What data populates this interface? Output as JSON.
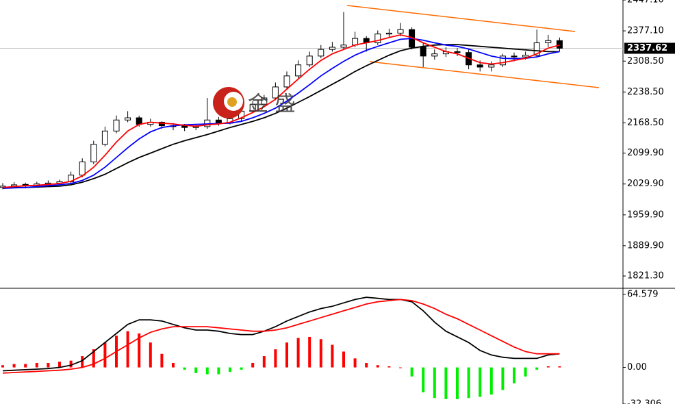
{
  "chart_data": [
    {
      "type": "candlestick",
      "open": [
        2022,
        2025,
        2029,
        2026,
        2030,
        2032,
        2035,
        2050,
        2080,
        2120,
        2150,
        2175,
        2180,
        2165,
        2170,
        2162,
        2162,
        2158,
        2160,
        2175,
        2168,
        2178,
        2195,
        2210,
        2225,
        2250,
        2275,
        2300,
        2320,
        2335,
        2340,
        2345,
        2360,
        2350,
        2370,
        2372,
        2380,
        2340,
        2320,
        2325,
        2330,
        2328,
        2300,
        2295,
        2300,
        2320,
        2318,
        2322,
        2350,
        2355
      ],
      "high": [
        2032,
        2034,
        2033,
        2035,
        2038,
        2040,
        2058,
        2088,
        2128,
        2160,
        2185,
        2195,
        2185,
        2178,
        2172,
        2168,
        2166,
        2165,
        2225,
        2182,
        2185,
        2202,
        2218,
        2232,
        2260,
        2285,
        2310,
        2330,
        2345,
        2352,
        2420,
        2375,
        2365,
        2378,
        2382,
        2395,
        2385,
        2350,
        2335,
        2340,
        2338,
        2335,
        2310,
        2308,
        2325,
        2328,
        2330,
        2380,
        2368,
        2362
      ],
      "low": [
        2018,
        2020,
        2020,
        2022,
        2025,
        2028,
        2030,
        2045,
        2075,
        2115,
        2145,
        2170,
        2160,
        2160,
        2155,
        2152,
        2150,
        2152,
        2155,
        2162,
        2165,
        2172,
        2190,
        2205,
        2220,
        2245,
        2270,
        2295,
        2315,
        2330,
        2335,
        2340,
        2330,
        2345,
        2362,
        2365,
        2335,
        2295,
        2312,
        2318,
        2320,
        2290,
        2285,
        2285,
        2295,
        2308,
        2312,
        2318,
        2340,
        2330
      ],
      "close": [
        2025,
        2028,
        2026,
        2030,
        2032,
        2035,
        2050,
        2080,
        2120,
        2150,
        2175,
        2180,
        2165,
        2170,
        2162,
        2160,
        2158,
        2160,
        2175,
        2168,
        2178,
        2195,
        2210,
        2225,
        2250,
        2275,
        2300,
        2320,
        2335,
        2340,
        2345,
        2360,
        2350,
        2370,
        2372,
        2380,
        2340,
        2320,
        2325,
        2330,
        2328,
        2300,
        2295,
        2300,
        2320,
        2318,
        2322,
        2350,
        2355,
        2337.62
      ],
      "series": [
        {
          "color": "#ff0000",
          "values": [
            2022,
            2024,
            2026,
            2027,
            2029,
            2031,
            2036,
            2048,
            2068,
            2095,
            2125,
            2150,
            2165,
            2170,
            2168,
            2166,
            2163,
            2161,
            2164,
            2166,
            2170,
            2180,
            2192,
            2205,
            2222,
            2245,
            2268,
            2290,
            2310,
            2325,
            2335,
            2345,
            2350,
            2355,
            2362,
            2368,
            2362,
            2350,
            2340,
            2330,
            2325,
            2315,
            2305,
            2302,
            2305,
            2310,
            2315,
            2325,
            2338,
            2345
          ]
        },
        {
          "color": "#0000ff",
          "values": [
            2020,
            2021,
            2022,
            2024,
            2026,
            2028,
            2031,
            2038,
            2050,
            2068,
            2090,
            2112,
            2132,
            2148,
            2158,
            2162,
            2164,
            2165,
            2166,
            2167,
            2168,
            2172,
            2180,
            2190,
            2202,
            2218,
            2236,
            2255,
            2275,
            2292,
            2308,
            2322,
            2333,
            2342,
            2350,
            2358,
            2360,
            2356,
            2350,
            2345,
            2342,
            2336,
            2328,
            2320,
            2315,
            2314,
            2315,
            2318,
            2325,
            2330
          ]
        },
        {
          "color": "#000000",
          "values": [
            2022,
            2022,
            2022,
            2023,
            2024,
            2025,
            2028,
            2034,
            2042,
            2052,
            2065,
            2078,
            2090,
            2100,
            2110,
            2120,
            2128,
            2135,
            2142,
            2150,
            2158,
            2165,
            2172,
            2180,
            2190,
            2202,
            2215,
            2228,
            2242,
            2256,
            2270,
            2285,
            2298,
            2310,
            2322,
            2332,
            2338,
            2342,
            2345,
            2346,
            2346,
            2344,
            2342,
            2340,
            2338,
            2336,
            2334,
            2332,
            2330,
            2330
          ]
        }
      ],
      "last_price": 2337.62,
      "watermark": "金 盛",
      "ylim": [
        1795,
        2447.1
      ],
      "yticks": [
        {
          "value": 2447.1,
          "label": "2447.10"
        },
        {
          "value": 2377.1,
          "label": "2377.10"
        },
        {
          "value": 2308.5,
          "label": "2308.50"
        },
        {
          "value": 2238.5,
          "label": "2238.50"
        },
        {
          "value": 2168.5,
          "label": "2168.50"
        },
        {
          "value": 2099.9,
          "label": "2099.90"
        },
        {
          "value": 2029.9,
          "label": "2029.90"
        },
        {
          "value": 1959.9,
          "label": "1959.90"
        },
        {
          "value": 1889.9,
          "label": "1889.90"
        },
        {
          "value": 1821.3,
          "label": "1821.30"
        }
      ]
    },
    {
      "type": "macd",
      "series": [
        {
          "color": "#000000",
          "values": [
            -3,
            -2.5,
            -2,
            -1.5,
            -1,
            0,
            2,
            6,
            14,
            22,
            30,
            38,
            42,
            42,
            41,
            38,
            35,
            33,
            33,
            32,
            30,
            29,
            29,
            32,
            36,
            41,
            45,
            49,
            52,
            54,
            57,
            60,
            62,
            61,
            60,
            60,
            58,
            50,
            40,
            32,
            27,
            22,
            15,
            11,
            9,
            8,
            8,
            8,
            11,
            12
          ]
        },
        {
          "color": "#ff0000",
          "values": [
            -5,
            -4.5,
            -4,
            -3.5,
            -3,
            -2.5,
            -1.5,
            0,
            3,
            8,
            14,
            20,
            26,
            31,
            34,
            36,
            36,
            36,
            36,
            35,
            34,
            33,
            32,
            32,
            33,
            35,
            38,
            41,
            44,
            47,
            50,
            53,
            56,
            58,
            59,
            60,
            59,
            56,
            52,
            47,
            43,
            38,
            33,
            28,
            23,
            18,
            14,
            12,
            12,
            12
          ]
        }
      ],
      "histogram": [
        2,
        3,
        3,
        4,
        4,
        5,
        6,
        10,
        16,
        22,
        28,
        32,
        30,
        22,
        12,
        4,
        -2,
        -5,
        -6,
        -6,
        -4,
        -2,
        4,
        10,
        16,
        22,
        26,
        27,
        25,
        20,
        14,
        8,
        4,
        2,
        1,
        0,
        -8,
        -22,
        -27,
        -28,
        -28,
        -27,
        -26,
        -24,
        -20,
        -14,
        -8,
        -2,
        1,
        1
      ],
      "up_color": "#ff0000",
      "down_color": "#00ee00",
      "ylim": [
        -32.306,
        69.3
      ],
      "yticks": [
        64.579,
        {
          "value": 0,
          "label": "0.00"
        },
        -32.306
      ]
    }
  ]
}
